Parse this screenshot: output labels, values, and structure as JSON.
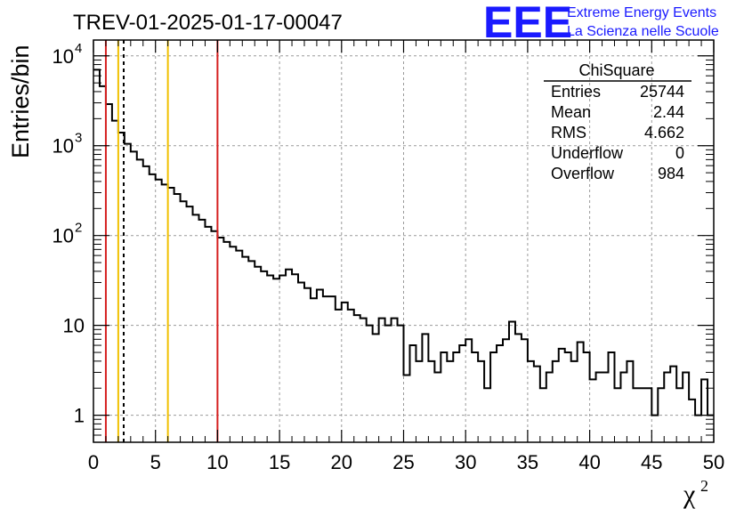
{
  "chart_data": {
    "type": "histogram",
    "title": "TREV-01-2025-01-17-00047",
    "xlabel": "χ",
    "xlabel_sup": "2",
    "ylabel": "Entries/bin",
    "xlim": [
      0,
      50
    ],
    "ylim": [
      0.5,
      15000
    ],
    "yscale": "log",
    "bin_width": 0.5,
    "grid": true,
    "x_ticks": [
      0,
      5,
      10,
      15,
      20,
      25,
      30,
      35,
      40,
      45,
      50
    ],
    "y_ticks": [
      {
        "value": 1,
        "label": "1"
      },
      {
        "value": 10,
        "label": "10"
      },
      {
        "value": 100,
        "label": "10",
        "exp": "2"
      },
      {
        "value": 1000,
        "label": "10",
        "exp": "3"
      },
      {
        "value": 10000,
        "label": "10",
        "exp": "4"
      }
    ],
    "values": [
      7000,
      4600,
      2900,
      1900,
      1400,
      1050,
      860,
      700,
      590,
      480,
      420,
      370,
      340,
      290,
      240,
      210,
      170,
      150,
      125,
      112,
      95,
      85,
      75,
      68,
      58,
      52,
      45,
      40,
      36,
      33,
      36,
      42,
      37,
      30,
      26,
      20,
      25,
      21,
      21,
      15,
      18,
      15,
      13,
      12,
      10,
      8,
      12,
      10,
      12,
      10,
      2.8,
      6,
      4,
      8,
      4,
      3,
      5,
      4,
      5,
      6,
      7,
      5,
      4,
      2,
      5,
      6,
      7,
      11,
      8,
      7,
      4,
      3.5,
      2,
      3,
      4,
      5.5,
      5,
      4,
      6.5,
      5,
      2.5,
      3,
      3,
      5,
      2,
      3,
      4,
      2,
      2,
      2,
      1,
      2,
      3,
      3.5,
      2,
      3,
      1.5,
      1,
      2.5,
      1
    ],
    "vlines": [
      {
        "x": 1.0,
        "color": "#d62020",
        "style": "solid"
      },
      {
        "x": 2.0,
        "color": "#f0c000",
        "style": "solid"
      },
      {
        "x": 2.44,
        "color": "#000000",
        "style": "dashed"
      },
      {
        "x": 6.0,
        "color": "#f0c000",
        "style": "solid"
      },
      {
        "x": 10.0,
        "color": "#d62020",
        "style": "solid"
      }
    ],
    "stats": {
      "name": "ChiSquare",
      "rows": [
        {
          "label": "Entries",
          "value": "25744"
        },
        {
          "label": "Mean",
          "value": "2.44"
        },
        {
          "label": "RMS",
          "value": "4.662"
        },
        {
          "label": "Underflow",
          "value": "0"
        },
        {
          "label": "Overflow",
          "value": "984"
        }
      ]
    }
  },
  "logo": {
    "mark": "EEE",
    "line1": "Extreme Energy Events",
    "line2": "La Scienza nelle Scuole",
    "color": "#1a1aff"
  }
}
